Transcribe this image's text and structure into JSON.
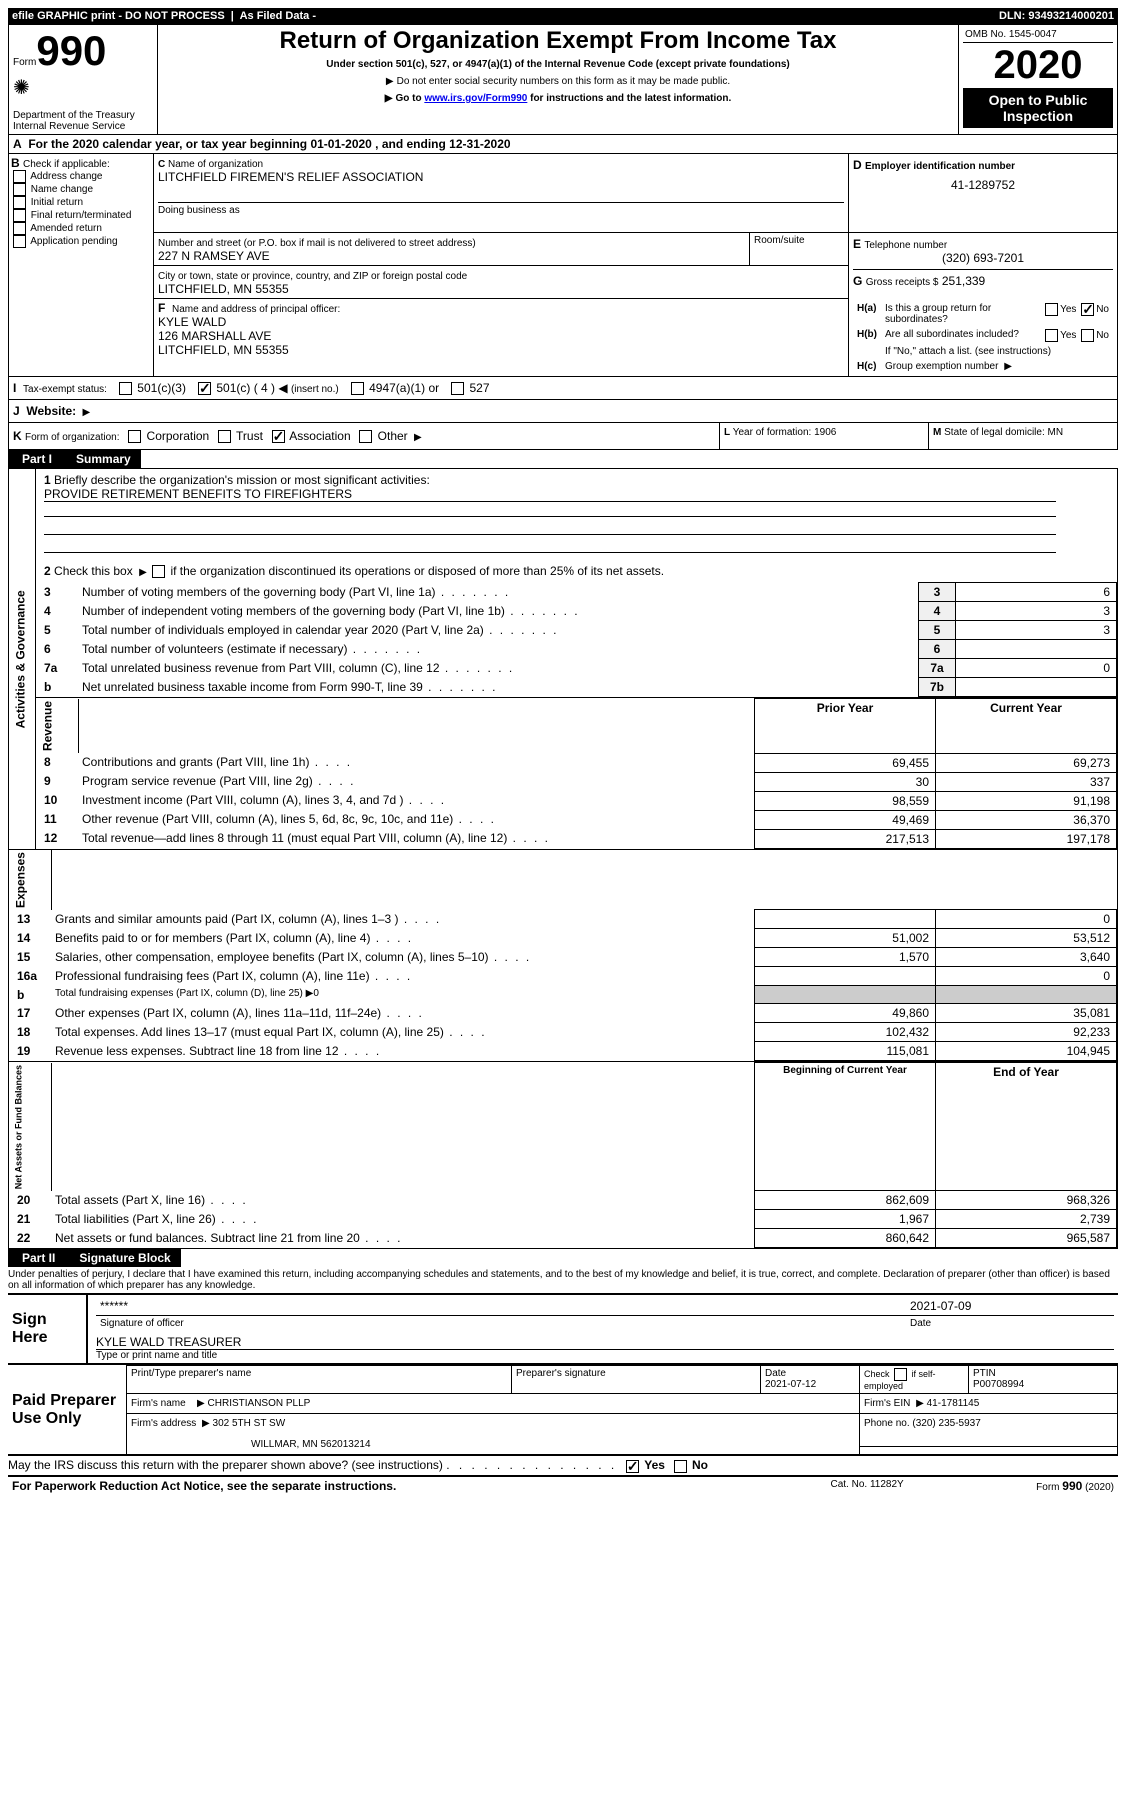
{
  "header": {
    "efile_text": "efile GRAPHIC print - DO NOT PROCESS",
    "as_filed": "As Filed Data -",
    "dln_label": "DLN:",
    "dln": "93493214000201"
  },
  "form_box": {
    "form_label": "Form",
    "form_num": "990",
    "dept": "Department of the Treasury",
    "irs": "Internal Revenue Service"
  },
  "title_box": {
    "title": "Return of Organization Exempt From Income Tax",
    "sub1": "Under section 501(c), 527, or 4947(a)(1) of the Internal Revenue Code (except private foundations)",
    "sub2": "Do not enter social security numbers on this form as it may be made public.",
    "sub3_a": "Go to ",
    "sub3_link": "www.irs.gov/Form990",
    "sub3_b": " for instructions and the latest information."
  },
  "right_box": {
    "omb": "OMB No. 1545-0047",
    "year": "2020",
    "open": "Open to Public Inspection"
  },
  "lineA": {
    "label": "A",
    "text": "For the 2020 calendar year, or tax year beginning 01-01-2020   , and ending 12-31-2020"
  },
  "B": {
    "label": "B",
    "check_if": "Check if applicable:",
    "items": [
      "Address change",
      "Name change",
      "Initial return",
      "Final return/terminated",
      "Amended return",
      "Application pending"
    ]
  },
  "C": {
    "c_label": "C",
    "name_label": "Name of organization",
    "name": "LITCHFIELD FIREMEN'S RELIEF ASSOCIATION",
    "dba_label": "Doing business as",
    "street_label": "Number and street (or P.O. box if mail is not delivered to street address)",
    "room_label": "Room/suite",
    "street": "227 N RAMSEY AVE",
    "city_label": "City or town, state or province, country, and ZIP or foreign postal code",
    "city": "LITCHFIELD, MN  55355"
  },
  "D": {
    "label": "D",
    "title": "Employer identification number",
    "value": "41-1289752"
  },
  "E": {
    "label": "E",
    "title": "Telephone number",
    "value": "(320) 693-7201"
  },
  "G": {
    "label": "G",
    "title": "Gross receipts $",
    "value": "251,339"
  },
  "F": {
    "label": "F",
    "title": "Name and address of principal officer:",
    "line1": "KYLE WALD",
    "line2": "126 MARSHALL AVE",
    "line3": "LITCHFIELD, MN  55355"
  },
  "H": {
    "a_label": "H(a)",
    "a_text": "Is this a group return for subordinates?",
    "yes": "Yes",
    "no": "No",
    "b_label": "H(b)",
    "b_text": "Are all subordinates included?",
    "b_note": "If \"No,\" attach a list. (see instructions)",
    "c_label": "H(c)",
    "c_text": "Group exemption number"
  },
  "I": {
    "label": "I",
    "title": "Tax-exempt status:",
    "opts": [
      "501(c)(3)",
      "501(c) ( 4 )",
      "(insert no.)",
      "4947(a)(1) or",
      "527"
    ]
  },
  "J": {
    "label": "J",
    "title": "Website:"
  },
  "K": {
    "label": "K",
    "title": "Form of organization:",
    "opts": [
      "Corporation",
      "Trust",
      "Association",
      "Other"
    ]
  },
  "L": {
    "label": "L",
    "title": "Year of formation:",
    "value": "1906"
  },
  "M": {
    "label": "M",
    "title": "State of legal domicile:",
    "value": "MN"
  },
  "part1": {
    "tab": "Part I",
    "title": "Summary"
  },
  "summary": {
    "l1_label": "1",
    "l1": "Briefly describe the organization's mission or most significant activities:",
    "l1_text": "PROVIDE RETIREMENT BENEFITS TO FIREFIGHTERS",
    "l2_label": "2",
    "l2": "Check this box",
    "l2_b": "if the organization discontinued its operations or disposed of more than 25% of its net assets.",
    "rows_gov": [
      {
        "n": "3",
        "t": "Number of voting members of the governing body (Part VI, line 1a)",
        "ln": "3",
        "v": "6"
      },
      {
        "n": "4",
        "t": "Number of independent voting members of the governing body (Part VI, line 1b)",
        "ln": "4",
        "v": "3"
      },
      {
        "n": "5",
        "t": "Total number of individuals employed in calendar year 2020 (Part V, line 2a)",
        "ln": "5",
        "v": "3"
      },
      {
        "n": "6",
        "t": "Total number of volunteers (estimate if necessary)",
        "ln": "6",
        "v": ""
      },
      {
        "n": "7a",
        "t": "Total unrelated business revenue from Part VIII, column (C), line 12",
        "ln": "7a",
        "v": "0"
      },
      {
        "n": "b",
        "t": "Net unrelated business taxable income from Form 990-T, line 39",
        "ln": "7b",
        "v": ""
      }
    ],
    "py": "Prior Year",
    "cy": "Current Year",
    "rows_rev": [
      {
        "n": "8",
        "t": "Contributions and grants (Part VIII, line 1h)",
        "p": "69,455",
        "c": "69,273"
      },
      {
        "n": "9",
        "t": "Program service revenue (Part VIII, line 2g)",
        "p": "30",
        "c": "337"
      },
      {
        "n": "10",
        "t": "Investment income (Part VIII, column (A), lines 3, 4, and 7d )",
        "p": "98,559",
        "c": "91,198"
      },
      {
        "n": "11",
        "t": "Other revenue (Part VIII, column (A), lines 5, 6d, 8c, 9c, 10c, and 11e)",
        "p": "49,469",
        "c": "36,370"
      },
      {
        "n": "12",
        "t": "Total revenue—add lines 8 through 11 (must equal Part VIII, column (A), line 12)",
        "p": "217,513",
        "c": "197,178"
      }
    ],
    "rows_exp": [
      {
        "n": "13",
        "t": "Grants and similar amounts paid (Part IX, column (A), lines 1–3 )",
        "p": "",
        "c": "0"
      },
      {
        "n": "14",
        "t": "Benefits paid to or for members (Part IX, column (A), line 4)",
        "p": "51,002",
        "c": "53,512"
      },
      {
        "n": "15",
        "t": "Salaries, other compensation, employee benefits (Part IX, column (A), lines 5–10)",
        "p": "1,570",
        "c": "3,640"
      },
      {
        "n": "16a",
        "t": "Professional fundraising fees (Part IX, column (A), line 11e)",
        "p": "",
        "c": "0"
      },
      {
        "n": "b",
        "t": "Total fundraising expenses (Part IX, column (D), line 25) ▶0",
        "p": "",
        "c": "",
        "shade": true
      },
      {
        "n": "17",
        "t": "Other expenses (Part IX, column (A), lines 11a–11d, 11f–24e)",
        "p": "49,860",
        "c": "35,081"
      },
      {
        "n": "18",
        "t": "Total expenses. Add lines 13–17 (must equal Part IX, column (A), line 25)",
        "p": "102,432",
        "c": "92,233"
      },
      {
        "n": "19",
        "t": "Revenue less expenses. Subtract line 18 from line 12",
        "p": "115,081",
        "c": "104,945"
      }
    ],
    "by": "Beginning of Current Year",
    "ey": "End of Year",
    "rows_net": [
      {
        "n": "20",
        "t": "Total assets (Part X, line 16)",
        "p": "862,609",
        "c": "968,326"
      },
      {
        "n": "21",
        "t": "Total liabilities (Part X, line 26)",
        "p": "1,967",
        "c": "2,739"
      },
      {
        "n": "22",
        "t": "Net assets or fund balances. Subtract line 21 from line 20",
        "p": "860,642",
        "c": "965,587"
      }
    ],
    "vlab_gov": "Activities & Governance",
    "vlab_rev": "Revenue",
    "vlab_exp": "Expenses",
    "vlab_net": "Net Assets or Fund Balances"
  },
  "part2": {
    "tab": "Part II",
    "title": "Signature Block"
  },
  "perjury": "Under penalties of perjury, I declare that I have examined this return, including accompanying schedules and statements, and to the best of my knowledge and belief, it is true, correct, and complete. Declaration of preparer (other than officer) is based on all information of which preparer has any knowledge.",
  "sign": {
    "sign_here": "Sign Here",
    "stars": "******",
    "sig_label": "Signature of officer",
    "date_label": "Date",
    "date": "2021-07-09",
    "name": "KYLE WALD  TREASURER",
    "name_label": "Type or print name and title"
  },
  "paid": {
    "title": "Paid Preparer Use Only",
    "col1": "Print/Type preparer's name",
    "col2": "Preparer's signature",
    "col3": "Date",
    "col3v": "2021-07-12",
    "col4a": "Check",
    "col4b": "if self-employed",
    "col5": "PTIN",
    "ptin": "P00708994",
    "firm_name_l": "Firm's name",
    "firm_name": "CHRISTIANSON PLLP",
    "firm_ein_l": "Firm's EIN",
    "firm_ein": "41-1781145",
    "firm_addr_l": "Firm's address",
    "firm_addr1": "302 5TH ST SW",
    "firm_addr2": "WILLMAR, MN  562013214",
    "phone_l": "Phone no.",
    "phone": "(320) 235-5937"
  },
  "footer": {
    "discuss": "May the IRS discuss this return with the preparer shown above? (see instructions)",
    "paperwork": "For Paperwork Reduction Act Notice, see the separate instructions.",
    "cat": "Cat. No. 11282Y",
    "form": "Form 990 (2020)"
  }
}
